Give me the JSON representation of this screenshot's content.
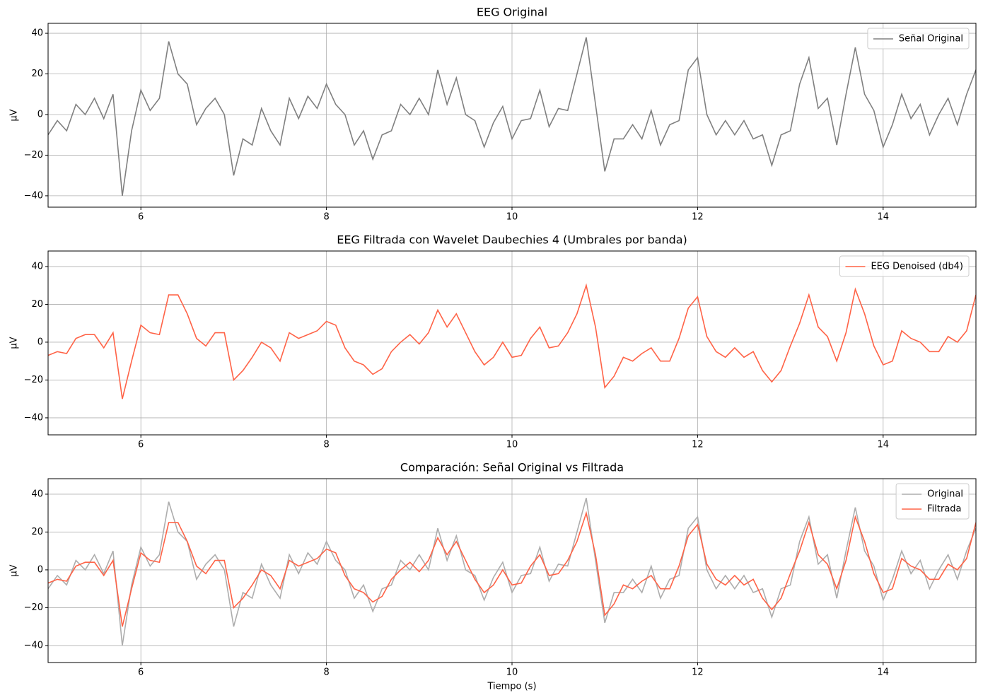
{
  "chart_data": [
    {
      "type": "line",
      "title": "EEG Original",
      "ylabel": "µV",
      "x": [
        5,
        5.1,
        5.2,
        5.3,
        5.4,
        5.5,
        5.6,
        5.7,
        5.8,
        5.9,
        6,
        6.1,
        6.2,
        6.3,
        6.4,
        6.5,
        6.6,
        6.7,
        6.8,
        6.9,
        7,
        7.1,
        7.2,
        7.3,
        7.4,
        7.5,
        7.6,
        7.7,
        7.8,
        7.9,
        8,
        8.1,
        8.2,
        8.3,
        8.4,
        8.5,
        8.6,
        8.7,
        8.8,
        8.9,
        9,
        9.1,
        9.2,
        9.3,
        9.4,
        9.5,
        9.6,
        9.7,
        9.8,
        9.9,
        10,
        10.1,
        10.2,
        10.3,
        10.4,
        10.5,
        10.6,
        10.7,
        10.8,
        10.9,
        11,
        11.1,
        11.2,
        11.3,
        11.4,
        11.5,
        11.6,
        11.7,
        11.8,
        11.9,
        12,
        12.1,
        12.2,
        12.3,
        12.4,
        12.5,
        12.6,
        12.7,
        12.8,
        12.9,
        13,
        13.1,
        13.2,
        13.3,
        13.4,
        13.5,
        13.6,
        13.7,
        13.8,
        13.9,
        14,
        14.1,
        14.2,
        14.3,
        14.4,
        14.5,
        14.6,
        14.7,
        14.8,
        14.9,
        15
      ],
      "series": [
        {
          "name": "Señal Original",
          "color": "#808080",
          "values": [
            -10,
            -3,
            -8,
            5,
            0,
            8,
            -2,
            10,
            -40,
            -8,
            12,
            2,
            8,
            36,
            20,
            15,
            -5,
            3,
            8,
            0,
            -30,
            -12,
            -15,
            3,
            -8,
            -15,
            8,
            -2,
            9,
            3,
            15,
            5,
            0,
            -15,
            -8,
            -22,
            -10,
            -8,
            5,
            0,
            8,
            0,
            22,
            5,
            18,
            0,
            -3,
            -16,
            -4,
            4,
            -12,
            -3,
            -2,
            12,
            -6,
            3,
            2,
            20,
            38,
            5,
            -28,
            -12,
            -12,
            -5,
            -12,
            2,
            -15,
            -5,
            -3,
            22,
            28,
            0,
            -10,
            -3,
            -10,
            -3,
            -12,
            -10,
            -25,
            -10,
            -8,
            15,
            28,
            3,
            8,
            -15,
            10,
            33,
            10,
            2,
            -16,
            -5,
            10,
            -2,
            5,
            -10,
            0,
            8,
            -5,
            10,
            22
          ]
        }
      ],
      "xlim": [
        5,
        15
      ],
      "ylim": [
        -45.6,
        44.9
      ],
      "xticks": [
        6,
        8,
        10,
        12,
        14
      ],
      "yticks": [
        {
          "value": -40,
          "label": "−40"
        },
        {
          "value": -20,
          "label": "−20"
        },
        0,
        20,
        40
      ],
      "grid": true,
      "legend": "upper right"
    },
    {
      "type": "line",
      "title": "EEG Filtrada con Wavelet Daubechies 4 (Umbrales por banda)",
      "ylabel": "µV",
      "x": [
        5,
        5.1,
        5.2,
        5.3,
        5.4,
        5.5,
        5.6,
        5.7,
        5.8,
        5.9,
        6,
        6.1,
        6.2,
        6.3,
        6.4,
        6.5,
        6.6,
        6.7,
        6.8,
        6.9,
        7,
        7.1,
        7.2,
        7.3,
        7.4,
        7.5,
        7.6,
        7.7,
        7.8,
        7.9,
        8,
        8.1,
        8.2,
        8.3,
        8.4,
        8.5,
        8.6,
        8.7,
        8.8,
        8.9,
        9,
        9.1,
        9.2,
        9.3,
        9.4,
        9.5,
        9.6,
        9.7,
        9.8,
        9.9,
        10,
        10.1,
        10.2,
        10.3,
        10.4,
        10.5,
        10.6,
        10.7,
        10.8,
        10.9,
        11,
        11.1,
        11.2,
        11.3,
        11.4,
        11.5,
        11.6,
        11.7,
        11.8,
        11.9,
        12,
        12.1,
        12.2,
        12.3,
        12.4,
        12.5,
        12.6,
        12.7,
        12.8,
        12.9,
        13,
        13.1,
        13.2,
        13.3,
        13.4,
        13.5,
        13.6,
        13.7,
        13.8,
        13.9,
        14,
        14.1,
        14.2,
        14.3,
        14.4,
        14.5,
        14.6,
        14.7,
        14.8,
        14.9,
        15
      ],
      "series": [
        {
          "name": "EEG Denoised (db4)",
          "color": "#ff6347",
          "values": [
            -7,
            -5,
            -6,
            2,
            4,
            4,
            -3,
            5,
            -30,
            -10,
            9,
            5,
            4,
            25,
            25,
            15,
            2,
            -2,
            5,
            5,
            -20,
            -15,
            -8,
            0,
            -3,
            -10,
            5,
            2,
            4,
            6,
            11,
            9,
            -3,
            -10,
            -12,
            -17,
            -14,
            -5,
            0,
            4,
            -1,
            5,
            17,
            8,
            15,
            5,
            -5,
            -12,
            -8,
            0,
            -8,
            -7,
            2,
            8,
            -3,
            -2,
            5,
            15,
            30,
            8,
            -24,
            -18,
            -8,
            -10,
            -6,
            -3,
            -10,
            -10,
            2,
            18,
            24,
            3,
            -5,
            -8,
            -3,
            -8,
            -5,
            -15,
            -21,
            -15,
            -2,
            10,
            25,
            8,
            3,
            -10,
            5,
            28,
            15,
            -2,
            -12,
            -10,
            6,
            2,
            0,
            -5,
            -5,
            3,
            0,
            6,
            25
          ]
        }
      ],
      "xlim": [
        5,
        15
      ],
      "ylim": [
        -49,
        48.2
      ],
      "xticks": [
        6,
        8,
        10,
        12,
        14
      ],
      "yticks": [
        {
          "value": -40,
          "label": "−40"
        },
        {
          "value": -20,
          "label": "−20"
        },
        0,
        20,
        40
      ],
      "grid": true,
      "legend": "upper right"
    },
    {
      "type": "line",
      "title": "Comparación: Señal Original vs Filtrada",
      "ylabel": "µV",
      "xlabel": "Tiempo (s)",
      "x": [
        5,
        5.1,
        5.2,
        5.3,
        5.4,
        5.5,
        5.6,
        5.7,
        5.8,
        5.9,
        6,
        6.1,
        6.2,
        6.3,
        6.4,
        6.5,
        6.6,
        6.7,
        6.8,
        6.9,
        7,
        7.1,
        7.2,
        7.3,
        7.4,
        7.5,
        7.6,
        7.7,
        7.8,
        7.9,
        8,
        8.1,
        8.2,
        8.3,
        8.4,
        8.5,
        8.6,
        8.7,
        8.8,
        8.9,
        9,
        9.1,
        9.2,
        9.3,
        9.4,
        9.5,
        9.6,
        9.7,
        9.8,
        9.9,
        10,
        10.1,
        10.2,
        10.3,
        10.4,
        10.5,
        10.6,
        10.7,
        10.8,
        10.9,
        11,
        11.1,
        11.2,
        11.3,
        11.4,
        11.5,
        11.6,
        11.7,
        11.8,
        11.9,
        12,
        12.1,
        12.2,
        12.3,
        12.4,
        12.5,
        12.6,
        12.7,
        12.8,
        12.9,
        13,
        13.1,
        13.2,
        13.3,
        13.4,
        13.5,
        13.6,
        13.7,
        13.8,
        13.9,
        14,
        14.1,
        14.2,
        14.3,
        14.4,
        14.5,
        14.6,
        14.7,
        14.8,
        14.9,
        15
      ],
      "series": [
        {
          "name": "Original",
          "color": "#adadad",
          "values": [
            -10,
            -3,
            -8,
            5,
            0,
            8,
            -2,
            10,
            -40,
            -8,
            12,
            2,
            8,
            36,
            20,
            15,
            -5,
            3,
            8,
            0,
            -30,
            -12,
            -15,
            3,
            -8,
            -15,
            8,
            -2,
            9,
            3,
            15,
            5,
            0,
            -15,
            -8,
            -22,
            -10,
            -8,
            5,
            0,
            8,
            0,
            22,
            5,
            18,
            0,
            -3,
            -16,
            -4,
            4,
            -12,
            -3,
            -2,
            12,
            -6,
            3,
            2,
            20,
            38,
            5,
            -28,
            -12,
            -12,
            -5,
            -12,
            2,
            -15,
            -5,
            -3,
            22,
            28,
            0,
            -10,
            -3,
            -10,
            -3,
            -12,
            -10,
            -25,
            -10,
            -8,
            15,
            28,
            3,
            8,
            -15,
            10,
            33,
            10,
            2,
            -16,
            -5,
            10,
            -2,
            5,
            -10,
            0,
            8,
            -5,
            10,
            22
          ]
        },
        {
          "name": "Filtrada",
          "color": "#ff6347",
          "values": [
            -7,
            -5,
            -6,
            2,
            4,
            4,
            -3,
            5,
            -30,
            -10,
            9,
            5,
            4,
            25,
            25,
            15,
            2,
            -2,
            5,
            5,
            -20,
            -15,
            -8,
            0,
            -3,
            -10,
            5,
            2,
            4,
            6,
            11,
            9,
            -3,
            -10,
            -12,
            -17,
            -14,
            -5,
            0,
            4,
            -1,
            5,
            17,
            8,
            15,
            5,
            -5,
            -12,
            -8,
            0,
            -8,
            -7,
            2,
            8,
            -3,
            -2,
            5,
            15,
            30,
            8,
            -24,
            -18,
            -8,
            -10,
            -6,
            -3,
            -10,
            -10,
            2,
            18,
            24,
            3,
            -5,
            -8,
            -3,
            -8,
            -5,
            -15,
            -21,
            -15,
            -2,
            10,
            25,
            8,
            3,
            -10,
            5,
            28,
            15,
            -2,
            -12,
            -10,
            6,
            2,
            0,
            -5,
            -5,
            3,
            0,
            6,
            25
          ]
        }
      ],
      "xlim": [
        5,
        15
      ],
      "ylim": [
        -49,
        48.2
      ],
      "xticks": [
        6,
        8,
        10,
        12,
        14
      ],
      "yticks": [
        {
          "value": -40,
          "label": "−40"
        },
        {
          "value": -20,
          "label": "−20"
        },
        0,
        20,
        40
      ],
      "grid": true,
      "legend": "upper right"
    }
  ]
}
